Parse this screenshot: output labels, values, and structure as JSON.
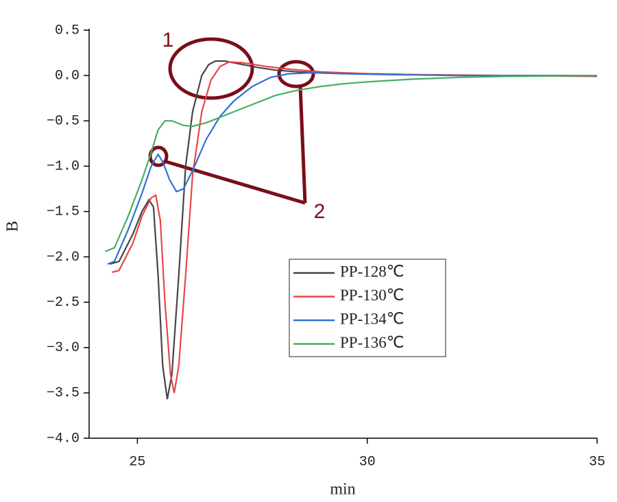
{
  "chart_data": {
    "type": "line",
    "xlabel": "min",
    "ylabel": "B",
    "xlim": [
      23.95,
      35
    ],
    "ylim": [
      -4,
      0.5
    ],
    "xticks": [
      25,
      30,
      35
    ],
    "yticks": [
      0.5,
      {
        "value": 0,
        "label": "0.0"
      },
      {
        "value": -0.5,
        "label": "−0.5"
      },
      {
        "value": -1,
        "label": "−1.0"
      },
      {
        "value": -1.5,
        "label": "−1.5"
      },
      {
        "value": -2,
        "label": "−2.0"
      },
      {
        "value": -2.5,
        "label": "−2.5"
      },
      {
        "value": -3,
        "label": "−3.0"
      },
      {
        "value": -3.5,
        "label": "−3.5"
      },
      {
        "value": -4,
        "label": "−4.0"
      }
    ],
    "legend": "center",
    "series": [
      {
        "name": "PP-128℃",
        "color": "#444444",
        "x": [
          24.4,
          24.6,
          24.9,
          25.1,
          25.25,
          25.35,
          25.45,
          25.55,
          25.65,
          25.75,
          25.9,
          26.05,
          26.2,
          26.4,
          26.55,
          26.7,
          26.9,
          27.2,
          27.6,
          28,
          28.5,
          29,
          30,
          31,
          32.2
        ],
        "values": [
          -2.08,
          -2.05,
          -1.75,
          -1.5,
          -1.37,
          -1.45,
          -2.2,
          -3.2,
          -3.57,
          -3.3,
          -2.2,
          -1.0,
          -0.4,
          0.0,
          0.12,
          0.16,
          0.16,
          0.13,
          0.09,
          0.06,
          0.04,
          0.03,
          0.02,
          0.01,
          0.0
        ]
      },
      {
        "name": "PP-130℃",
        "color": "#e84545",
        "x": [
          24.45,
          24.6,
          24.9,
          25.1,
          25.3,
          25.4,
          25.5,
          25.6,
          25.72,
          25.8,
          25.9,
          26.05,
          26.2,
          26.4,
          26.6,
          26.8,
          27,
          27.3,
          27.8,
          28.3,
          29,
          30,
          31,
          33,
          35
        ],
        "values": [
          -2.17,
          -2.15,
          -1.85,
          -1.55,
          -1.35,
          -1.32,
          -1.6,
          -2.5,
          -3.3,
          -3.5,
          -3.2,
          -2.2,
          -1.1,
          -0.4,
          -0.05,
          0.1,
          0.15,
          0.14,
          0.1,
          0.07,
          0.04,
          0.02,
          0.01,
          0.0,
          -0.01
        ]
      },
      {
        "name": "PP-134℃",
        "color": "#2f70d2",
        "x": [
          24.35,
          24.5,
          24.8,
          25.1,
          25.3,
          25.45,
          25.55,
          25.7,
          25.85,
          26.0,
          26.2,
          26.5,
          26.8,
          27.1,
          27.5,
          27.9,
          28.3,
          28.8,
          29.5,
          30.5,
          32,
          35
        ],
        "values": [
          -2.08,
          -2.05,
          -1.7,
          -1.3,
          -1.0,
          -0.87,
          -0.95,
          -1.15,
          -1.28,
          -1.25,
          -1.05,
          -0.7,
          -0.45,
          -0.28,
          -0.12,
          -0.02,
          0.02,
          0.03,
          0.02,
          0.01,
          0.0,
          0.0
        ]
      },
      {
        "name": "PP-136℃",
        "color": "#45b062",
        "x": [
          24.3,
          24.5,
          24.8,
          25.1,
          25.3,
          25.45,
          25.6,
          25.75,
          26.0,
          26.2,
          26.5,
          27,
          27.5,
          28,
          28.5,
          29,
          29.5,
          30,
          31,
          32,
          33,
          35
        ],
        "values": [
          -1.94,
          -1.9,
          -1.55,
          -1.15,
          -0.85,
          -0.6,
          -0.5,
          -0.5,
          -0.55,
          -0.56,
          -0.52,
          -0.42,
          -0.32,
          -0.22,
          -0.16,
          -0.12,
          -0.09,
          -0.07,
          -0.04,
          -0.02,
          -0.01,
          0.0
        ]
      }
    ],
    "annotations": [
      "1",
      "2"
    ]
  }
}
